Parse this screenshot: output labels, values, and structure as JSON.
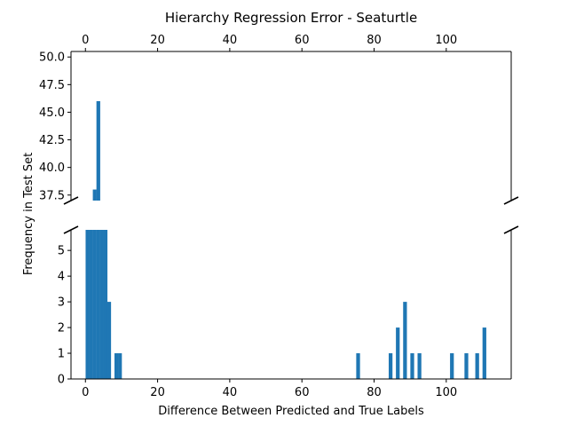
{
  "chart_data": {
    "type": "bar",
    "title": "Hierarchy Regression Error - Seaturtle",
    "xlabel": "Difference Between Predicted and True Labels",
    "ylabel": "Frequency in Test Set",
    "broken_axis": true,
    "xlim": [
      -4,
      118
    ],
    "xticks": [
      0,
      20,
      40,
      60,
      80,
      100
    ],
    "xtick_labels": [
      "0",
      "20",
      "40",
      "60",
      "80",
      "100"
    ],
    "top_panel": {
      "ylim": [
        37,
        50.5
      ],
      "yticks": [
        37.5,
        40.0,
        42.5,
        45.0,
        47.5,
        50.0
      ],
      "ytick_labels": [
        "37.5",
        "40.0",
        "42.5",
        "45.0",
        "47.5",
        "50.0"
      ]
    },
    "bottom_panel": {
      "ylim": [
        0,
        5.8
      ],
      "yticks": [
        0,
        1,
        2,
        3,
        4,
        5
      ],
      "ytick_labels": [
        "0",
        "1",
        "2",
        "3",
        "4",
        "5"
      ]
    },
    "bar_width": 0.9,
    "bars": [
      {
        "x": 0.5,
        "value": 5.8
      },
      {
        "x": 1.5,
        "value": 37
      },
      {
        "x": 2.5,
        "value": 38
      },
      {
        "x": 3.5,
        "value": 46
      },
      {
        "x": 4.5,
        "value": 5.8
      },
      {
        "x": 5.5,
        "value": 5.8
      },
      {
        "x": 6.5,
        "value": 3
      },
      {
        "x": 8.5,
        "value": 1
      },
      {
        "x": 9.5,
        "value": 1
      },
      {
        "x": 75.5,
        "value": 1
      },
      {
        "x": 84.5,
        "value": 1
      },
      {
        "x": 86.5,
        "value": 2
      },
      {
        "x": 88.5,
        "value": 3
      },
      {
        "x": 90.5,
        "value": 1
      },
      {
        "x": 92.5,
        "value": 1
      },
      {
        "x": 101.5,
        "value": 1
      },
      {
        "x": 105.5,
        "value": 1
      },
      {
        "x": 108.5,
        "value": 1
      },
      {
        "x": 110.5,
        "value": 2
      }
    ],
    "bar_color": "#1f77b4",
    "grid": false,
    "legend": null
  }
}
